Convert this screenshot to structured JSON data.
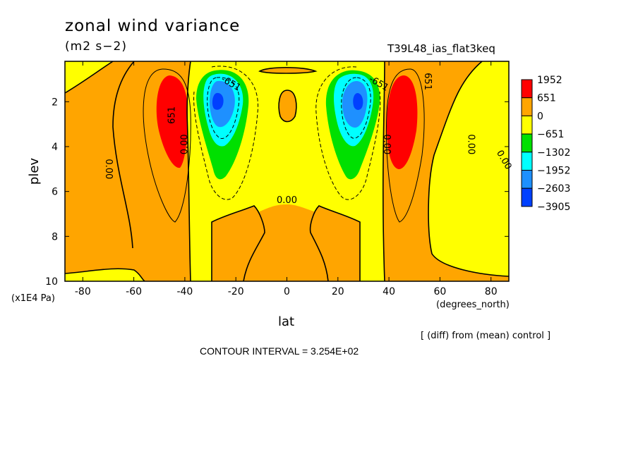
{
  "chart_data": {
    "type": "heatmap",
    "title": "zonal wind variance",
    "units": "(m2 s−2)",
    "run_label": "T39L48_ias_flat3keq",
    "xlabel": "lat",
    "xunit": "(degrees_north)",
    "ylabel": "plev",
    "yunit": "(x1E4 Pa)",
    "note": "[ (diff) from (mean) control ]",
    "contour_interval_text": "CONTOUR INTERVAL = 3.254E+02",
    "xlim": [
      -87,
      87
    ],
    "ylim": [
      10,
      0.2
    ],
    "x_ticks": [
      -80,
      -60,
      -40,
      -20,
      0,
      20,
      40,
      60,
      80
    ],
    "y_ticks": [
      2,
      4,
      6,
      8,
      10
    ],
    "contour_labels": [
      {
        "text": "0.00",
        "x": -70,
        "y": 5.0,
        "rot": 90
      },
      {
        "text": "0.00",
        "x": -40,
        "y": 3.9,
        "rot": -90
      },
      {
        "text": "651",
        "x": -45,
        "y": 2.6,
        "rot": -90
      },
      {
        "text": "-651",
        "x": -22,
        "y": 1.2,
        "rot": 30
      },
      {
        "text": "0.00",
        "x": 0,
        "y": 6.4,
        "rot": 0
      },
      {
        "text": "-651",
        "x": 36,
        "y": 1.2,
        "rot": 30
      },
      {
        "text": "0.00",
        "x": 39,
        "y": 3.9,
        "rot": 90
      },
      {
        "text": "651",
        "x": 55,
        "y": 1.1,
        "rot": 90
      },
      {
        "text": "0.00",
        "x": 72,
        "y": 3.9,
        "rot": 90
      },
      {
        "text": "0.00",
        "x": 85,
        "y": 4.6,
        "rot": 60
      }
    ],
    "legend": [
      {
        "label": "1952",
        "color": "#ff0000"
      },
      {
        "label": "651",
        "color": "#ffa500"
      },
      {
        "label": "0",
        "color": "#ffff00"
      },
      {
        "label": "−651",
        "color": "#00e000"
      },
      {
        "label": "−1302",
        "color": "#00ffff"
      },
      {
        "label": "−1952",
        "color": "#1e90ff"
      },
      {
        "label": "−2603",
        "color": "#0040ff"
      },
      {
        "label": "−3905",
        "color": ""
      }
    ]
  }
}
